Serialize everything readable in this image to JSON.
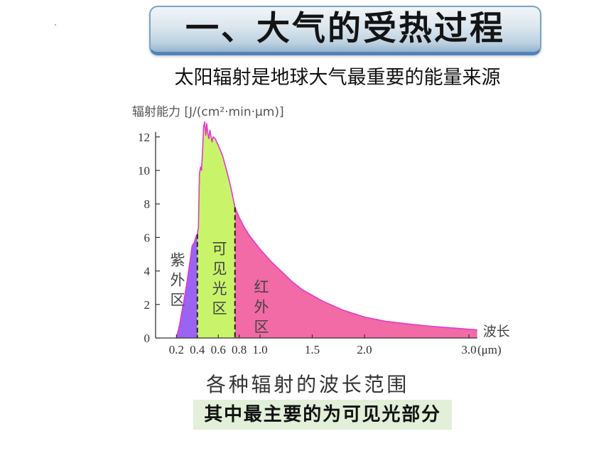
{
  "slide": {
    "title": "一、大气的受热过程",
    "subtitle": "太阳辐射是地球大气最重要的能量来源",
    "caption": "各种辐射的波长范围",
    "highlight": "其中最主要的为可见光部分"
  },
  "colors": {
    "banner_border": "#4e84bb",
    "highlight_bg": "#e2efd9"
  },
  "chart_data": {
    "type": "area",
    "ylabel": "辐射能力 [J/(cm²·min·μm)]",
    "xlabel": "波长",
    "x_unit": "(μm)",
    "xlim": [
      0,
      3.08
    ],
    "ylim": [
      0,
      12.3
    ],
    "x_ticks": [
      0.2,
      0.4,
      0.6,
      0.8,
      1.0,
      1.5,
      2.0,
      3.0
    ],
    "x_tick_labels": [
      "0.2",
      "0.4",
      "0.6",
      "0.8",
      "1.0",
      "1.5",
      "2.0",
      "3.0"
    ],
    "y_ticks": [
      0,
      2,
      4,
      6,
      8,
      10,
      12
    ],
    "y_tick_labels": [
      "0",
      "2",
      "4",
      "6",
      "8",
      "10",
      "12"
    ],
    "grid": false,
    "line_color": "#e23ac8",
    "x": [
      0.2,
      0.23,
      0.27,
      0.3,
      0.33,
      0.35,
      0.37,
      0.39,
      0.4,
      0.41,
      0.42,
      0.43,
      0.44,
      0.45,
      0.46,
      0.47,
      0.48,
      0.49,
      0.5,
      0.51,
      0.52,
      0.54,
      0.55,
      0.57,
      0.6,
      0.64,
      0.68,
      0.72,
      0.76,
      0.8,
      0.85,
      0.9,
      1.0,
      1.1,
      1.2,
      1.3,
      1.4,
      1.6,
      1.8,
      2.0,
      2.2,
      2.4,
      2.6,
      2.8,
      3.0,
      3.08
    ],
    "y": [
      0,
      0.8,
      2.2,
      3.3,
      4.6,
      5.5,
      5.7,
      6.1,
      6.2,
      6.6,
      9.8,
      10.2,
      10.0,
      11.2,
      12.6,
      12.9,
      12.1,
      12.8,
      12.2,
      11.9,
      12.4,
      11.7,
      12.0,
      11.9,
      11.5,
      10.9,
      10.0,
      9.0,
      7.8,
      7.2,
      6.6,
      6.1,
      5.3,
      4.6,
      4.0,
      3.4,
      2.9,
      2.2,
      1.65,
      1.25,
      1.0,
      0.85,
      0.72,
      0.62,
      0.52,
      0.48
    ],
    "regions": [
      {
        "name": "紫外区",
        "from": 0.2,
        "to": 0.4,
        "color": "#9a63f2"
      },
      {
        "name": "可见光区",
        "from": 0.4,
        "to": 0.76,
        "color": "#c9f46a"
      },
      {
        "name": "红外区",
        "from": 0.76,
        "to": 3.08,
        "color": "#f26aa6"
      }
    ]
  }
}
